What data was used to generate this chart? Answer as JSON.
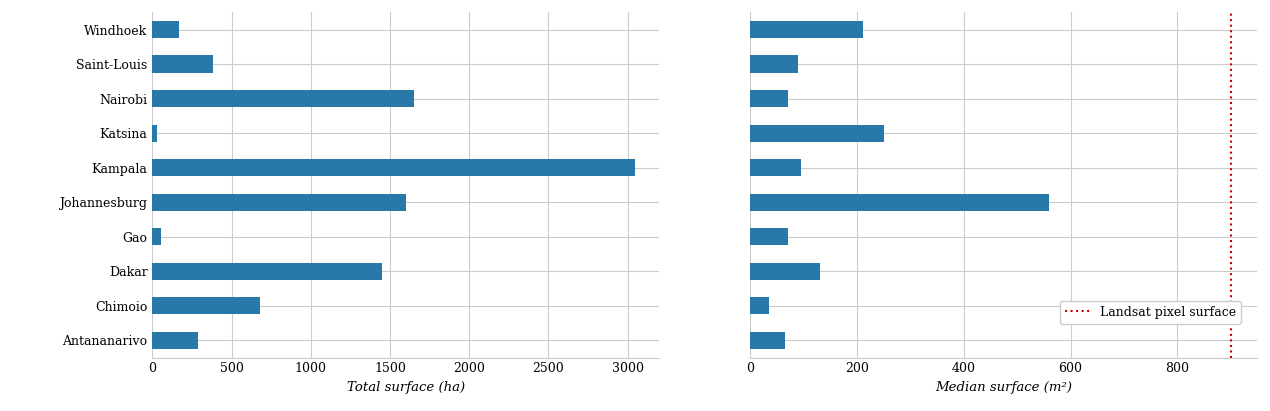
{
  "cities": [
    "Windhoek",
    "Saint-Louis",
    "Nairobi",
    "Katsina",
    "Kampala",
    "Johannesburg",
    "Gao",
    "Dakar",
    "Chimoio",
    "Antananarivo"
  ],
  "total_surface": [
    170,
    380,
    1650,
    30,
    3050,
    1600,
    55,
    1450,
    680,
    290
  ],
  "median_surface": [
    210,
    90,
    70,
    250,
    95,
    560,
    70,
    130,
    35,
    65
  ],
  "bar_color": "#2878a8",
  "landsat_line_value": 900,
  "landsat_line_color": "#cc0000",
  "xlabel_left": "Total surface (ha)",
  "xlabel_right": "Median surface (m²)",
  "xlim_left": [
    0,
    3200
  ],
  "xlim_right": [
    0,
    950
  ],
  "xticks_left": [
    0,
    500,
    1000,
    1500,
    2000,
    2500,
    3000
  ],
  "xticks_right": [
    0,
    200,
    400,
    600,
    800
  ],
  "legend_label": "Landsat pixel surface",
  "background_color": "#ffffff",
  "grid_color": "#cccccc"
}
